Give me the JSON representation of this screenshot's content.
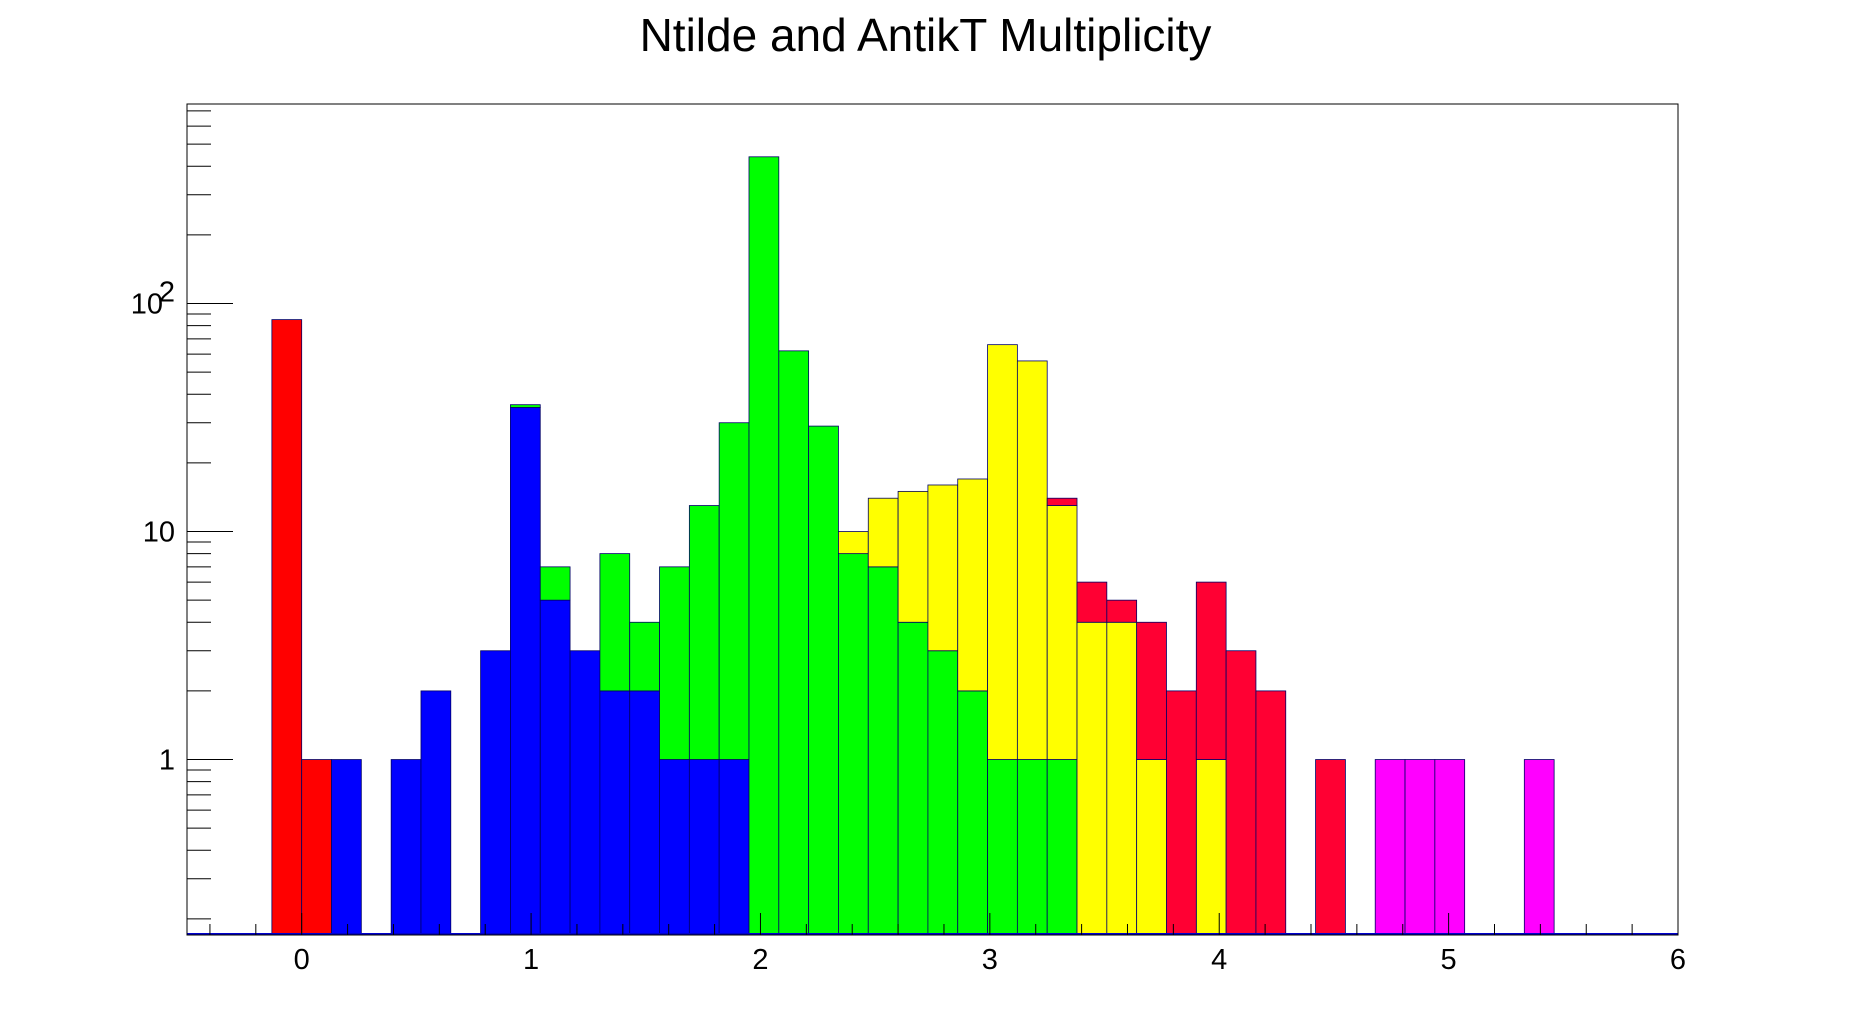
{
  "chart_data": {
    "type": "bar",
    "title": "Ntilde and AntikT Multiplicity",
    "xlabel": "",
    "ylabel": "",
    "xlim": [
      -0.5,
      6
    ],
    "ylim": [
      0.17,
      750
    ],
    "y_scale": "log",
    "grid": false,
    "stacked": true,
    "bin_width": 0.13,
    "x_ticks": [
      "0",
      "1",
      "2",
      "3",
      "4",
      "5",
      "6"
    ],
    "y_tick_labels": [
      {
        "value": 1,
        "label": "1"
      },
      {
        "value": 10,
        "label": "10"
      },
      {
        "value": 100,
        "label": "10",
        "sup": "2"
      }
    ],
    "series": [
      {
        "color": "#ff0000",
        "bins": [
          {
            "x0": -0.13,
            "value": 85
          },
          {
            "x0": 0.0,
            "value": 1
          }
        ]
      },
      {
        "color": "#0000ff",
        "bins": [
          {
            "x0": 0.13,
            "value": 1
          },
          {
            "x0": 0.39,
            "value": 1
          },
          {
            "x0": 0.52,
            "value": 2
          },
          {
            "x0": 0.78,
            "value": 3
          },
          {
            "x0": 0.91,
            "value": 35
          },
          {
            "x0": 1.04,
            "value": 5
          },
          {
            "x0": 1.17,
            "value": 3
          },
          {
            "x0": 1.3,
            "value": 2
          },
          {
            "x0": 1.43,
            "value": 2
          },
          {
            "x0": 1.56,
            "value": 1
          },
          {
            "x0": 1.69,
            "value": 1
          },
          {
            "x0": 1.82,
            "value": 1
          }
        ]
      },
      {
        "color": "#00ff00",
        "bins": [
          {
            "x0": 0.91,
            "value": 1
          },
          {
            "x0": 1.04,
            "value": 2
          },
          {
            "x0": 1.17,
            "value": 0
          },
          {
            "x0": 1.3,
            "value": 6
          },
          {
            "x0": 1.43,
            "value": 2
          },
          {
            "x0": 1.56,
            "value": 6
          },
          {
            "x0": 1.69,
            "value": 12
          },
          {
            "x0": 1.82,
            "value": 29
          },
          {
            "x0": 1.95,
            "value": 440
          },
          {
            "x0": 2.08,
            "value": 62
          },
          {
            "x0": 2.21,
            "value": 29
          },
          {
            "x0": 2.34,
            "value": 8
          },
          {
            "x0": 2.47,
            "value": 7
          },
          {
            "x0": 2.6,
            "value": 4
          },
          {
            "x0": 2.73,
            "value": 3
          },
          {
            "x0": 2.86,
            "value": 2
          },
          {
            "x0": 2.99,
            "value": 1
          },
          {
            "x0": 3.12,
            "value": 1
          },
          {
            "x0": 3.25,
            "value": 1
          }
        ]
      },
      {
        "color": "#ffff00",
        "bins": [
          {
            "x0": 2.34,
            "value": 2
          },
          {
            "x0": 2.47,
            "value": 7
          },
          {
            "x0": 2.6,
            "value": 11
          },
          {
            "x0": 2.73,
            "value": 13
          },
          {
            "x0": 2.86,
            "value": 15
          },
          {
            "x0": 2.99,
            "value": 65
          },
          {
            "x0": 3.12,
            "value": 55
          },
          {
            "x0": 3.25,
            "value": 12
          },
          {
            "x0": 3.38,
            "value": 4
          },
          {
            "x0": 3.51,
            "value": 4
          },
          {
            "x0": 3.64,
            "value": 1
          },
          {
            "x0": 3.77,
            "value": 0
          },
          {
            "x0": 3.9,
            "value": 1
          }
        ]
      },
      {
        "color": "#ff0033",
        "bins": [
          {
            "x0": 3.25,
            "value": 1
          },
          {
            "x0": 3.38,
            "value": 2
          },
          {
            "x0": 3.51,
            "value": 1
          },
          {
            "x0": 3.64,
            "value": 3
          },
          {
            "x0": 3.77,
            "value": 2
          },
          {
            "x0": 3.9,
            "value": 5
          },
          {
            "x0": 4.03,
            "value": 3
          },
          {
            "x0": 4.16,
            "value": 2
          },
          {
            "x0": 4.42,
            "value": 1
          }
        ]
      },
      {
        "color": "#ff00ff",
        "bins": [
          {
            "x0": 4.68,
            "value": 1
          },
          {
            "x0": 4.81,
            "value": 1
          },
          {
            "x0": 4.94,
            "value": 1
          },
          {
            "x0": 5.33,
            "value": 1
          }
        ]
      }
    ]
  }
}
